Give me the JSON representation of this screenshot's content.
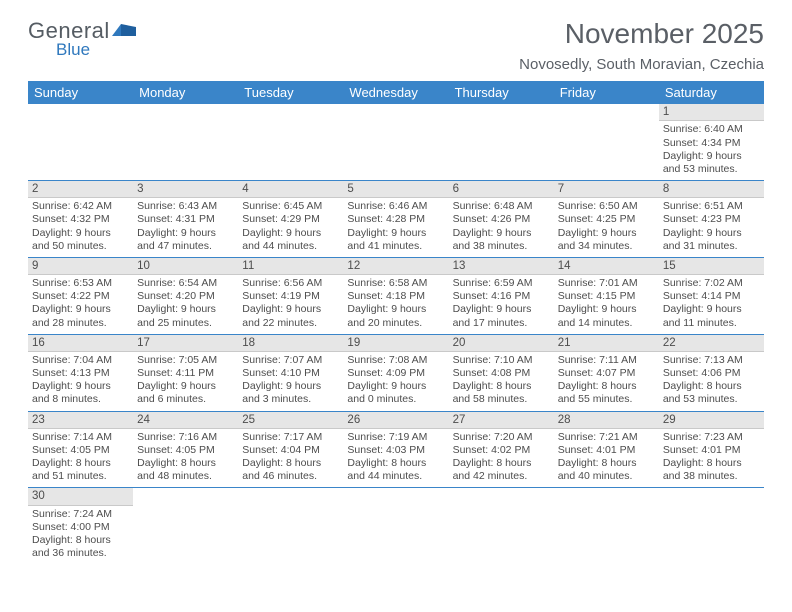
{
  "logo": {
    "general": "General",
    "blue": "Blue"
  },
  "title": "November 2025",
  "location": "Novosedly, South Moravian, Czechia",
  "colors": {
    "header_bg": "#3a85c9",
    "header_text": "#ffffff",
    "row_border": "#3a85c9",
    "daynum_bg": "#e6e6e6",
    "text": "#4d4d4d",
    "logo_gray": "#555c63",
    "logo_blue": "#2f78bd"
  },
  "weekdays": [
    "Sunday",
    "Monday",
    "Tuesday",
    "Wednesday",
    "Thursday",
    "Friday",
    "Saturday"
  ],
  "weeks": [
    [
      null,
      null,
      null,
      null,
      null,
      null,
      {
        "n": "1",
        "sunrise": "Sunrise: 6:40 AM",
        "sunset": "Sunset: 4:34 PM",
        "daylight": "Daylight: 9 hours and 53 minutes."
      }
    ],
    [
      {
        "n": "2",
        "sunrise": "Sunrise: 6:42 AM",
        "sunset": "Sunset: 4:32 PM",
        "daylight": "Daylight: 9 hours and 50 minutes."
      },
      {
        "n": "3",
        "sunrise": "Sunrise: 6:43 AM",
        "sunset": "Sunset: 4:31 PM",
        "daylight": "Daylight: 9 hours and 47 minutes."
      },
      {
        "n": "4",
        "sunrise": "Sunrise: 6:45 AM",
        "sunset": "Sunset: 4:29 PM",
        "daylight": "Daylight: 9 hours and 44 minutes."
      },
      {
        "n": "5",
        "sunrise": "Sunrise: 6:46 AM",
        "sunset": "Sunset: 4:28 PM",
        "daylight": "Daylight: 9 hours and 41 minutes."
      },
      {
        "n": "6",
        "sunrise": "Sunrise: 6:48 AM",
        "sunset": "Sunset: 4:26 PM",
        "daylight": "Daylight: 9 hours and 38 minutes."
      },
      {
        "n": "7",
        "sunrise": "Sunrise: 6:50 AM",
        "sunset": "Sunset: 4:25 PM",
        "daylight": "Daylight: 9 hours and 34 minutes."
      },
      {
        "n": "8",
        "sunrise": "Sunrise: 6:51 AM",
        "sunset": "Sunset: 4:23 PM",
        "daylight": "Daylight: 9 hours and 31 minutes."
      }
    ],
    [
      {
        "n": "9",
        "sunrise": "Sunrise: 6:53 AM",
        "sunset": "Sunset: 4:22 PM",
        "daylight": "Daylight: 9 hours and 28 minutes."
      },
      {
        "n": "10",
        "sunrise": "Sunrise: 6:54 AM",
        "sunset": "Sunset: 4:20 PM",
        "daylight": "Daylight: 9 hours and 25 minutes."
      },
      {
        "n": "11",
        "sunrise": "Sunrise: 6:56 AM",
        "sunset": "Sunset: 4:19 PM",
        "daylight": "Daylight: 9 hours and 22 minutes."
      },
      {
        "n": "12",
        "sunrise": "Sunrise: 6:58 AM",
        "sunset": "Sunset: 4:18 PM",
        "daylight": "Daylight: 9 hours and 20 minutes."
      },
      {
        "n": "13",
        "sunrise": "Sunrise: 6:59 AM",
        "sunset": "Sunset: 4:16 PM",
        "daylight": "Daylight: 9 hours and 17 minutes."
      },
      {
        "n": "14",
        "sunrise": "Sunrise: 7:01 AM",
        "sunset": "Sunset: 4:15 PM",
        "daylight": "Daylight: 9 hours and 14 minutes."
      },
      {
        "n": "15",
        "sunrise": "Sunrise: 7:02 AM",
        "sunset": "Sunset: 4:14 PM",
        "daylight": "Daylight: 9 hours and 11 minutes."
      }
    ],
    [
      {
        "n": "16",
        "sunrise": "Sunrise: 7:04 AM",
        "sunset": "Sunset: 4:13 PM",
        "daylight": "Daylight: 9 hours and 8 minutes."
      },
      {
        "n": "17",
        "sunrise": "Sunrise: 7:05 AM",
        "sunset": "Sunset: 4:11 PM",
        "daylight": "Daylight: 9 hours and 6 minutes."
      },
      {
        "n": "18",
        "sunrise": "Sunrise: 7:07 AM",
        "sunset": "Sunset: 4:10 PM",
        "daylight": "Daylight: 9 hours and 3 minutes."
      },
      {
        "n": "19",
        "sunrise": "Sunrise: 7:08 AM",
        "sunset": "Sunset: 4:09 PM",
        "daylight": "Daylight: 9 hours and 0 minutes."
      },
      {
        "n": "20",
        "sunrise": "Sunrise: 7:10 AM",
        "sunset": "Sunset: 4:08 PM",
        "daylight": "Daylight: 8 hours and 58 minutes."
      },
      {
        "n": "21",
        "sunrise": "Sunrise: 7:11 AM",
        "sunset": "Sunset: 4:07 PM",
        "daylight": "Daylight: 8 hours and 55 minutes."
      },
      {
        "n": "22",
        "sunrise": "Sunrise: 7:13 AM",
        "sunset": "Sunset: 4:06 PM",
        "daylight": "Daylight: 8 hours and 53 minutes."
      }
    ],
    [
      {
        "n": "23",
        "sunrise": "Sunrise: 7:14 AM",
        "sunset": "Sunset: 4:05 PM",
        "daylight": "Daylight: 8 hours and 51 minutes."
      },
      {
        "n": "24",
        "sunrise": "Sunrise: 7:16 AM",
        "sunset": "Sunset: 4:05 PM",
        "daylight": "Daylight: 8 hours and 48 minutes."
      },
      {
        "n": "25",
        "sunrise": "Sunrise: 7:17 AM",
        "sunset": "Sunset: 4:04 PM",
        "daylight": "Daylight: 8 hours and 46 minutes."
      },
      {
        "n": "26",
        "sunrise": "Sunrise: 7:19 AM",
        "sunset": "Sunset: 4:03 PM",
        "daylight": "Daylight: 8 hours and 44 minutes."
      },
      {
        "n": "27",
        "sunrise": "Sunrise: 7:20 AM",
        "sunset": "Sunset: 4:02 PM",
        "daylight": "Daylight: 8 hours and 42 minutes."
      },
      {
        "n": "28",
        "sunrise": "Sunrise: 7:21 AM",
        "sunset": "Sunset: 4:01 PM",
        "daylight": "Daylight: 8 hours and 40 minutes."
      },
      {
        "n": "29",
        "sunrise": "Sunrise: 7:23 AM",
        "sunset": "Sunset: 4:01 PM",
        "daylight": "Daylight: 8 hours and 38 minutes."
      }
    ],
    [
      {
        "n": "30",
        "sunrise": "Sunrise: 7:24 AM",
        "sunset": "Sunset: 4:00 PM",
        "daylight": "Daylight: 8 hours and 36 minutes."
      },
      null,
      null,
      null,
      null,
      null,
      null
    ]
  ]
}
